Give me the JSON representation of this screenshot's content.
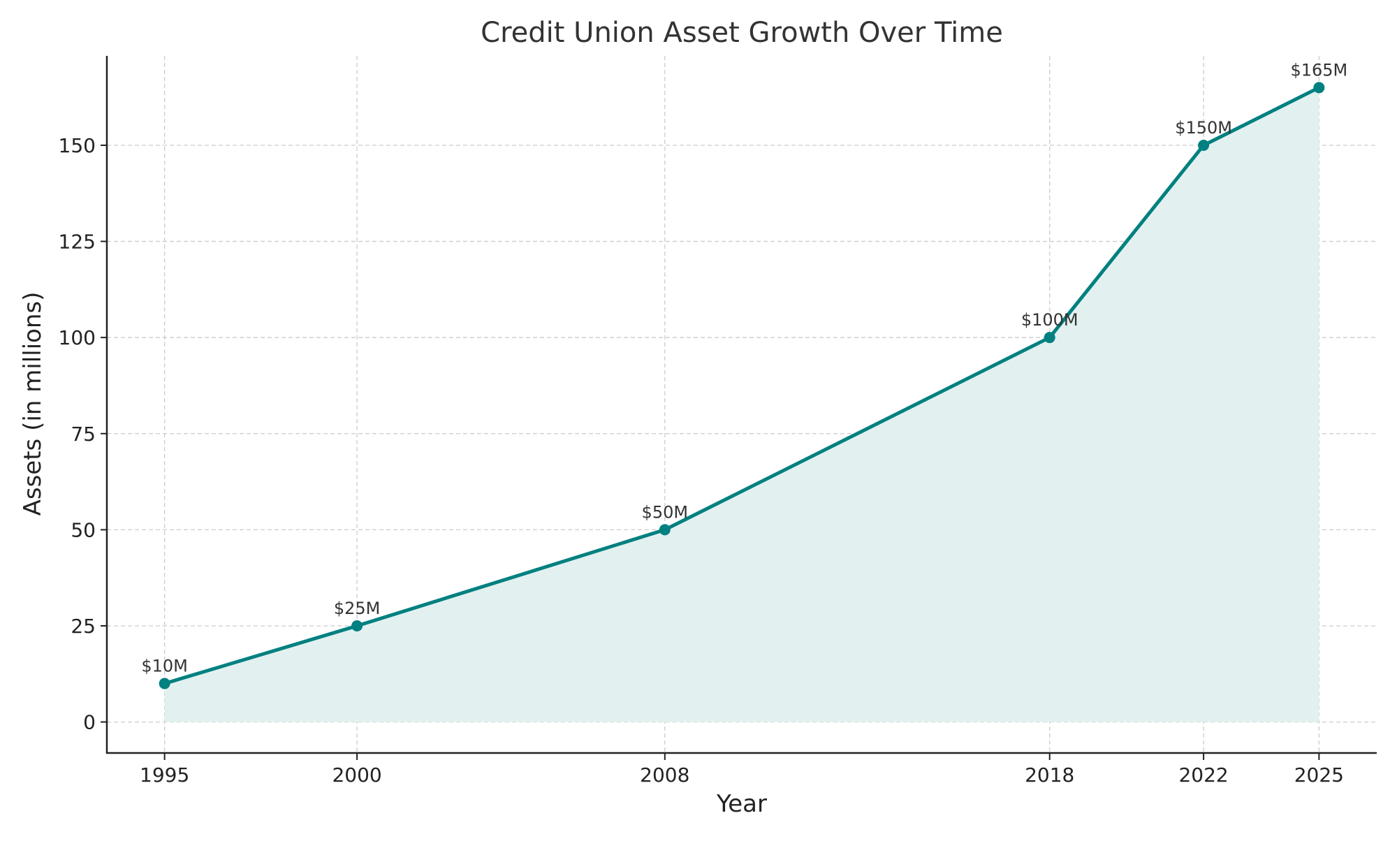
{
  "chart_data": {
    "type": "area",
    "title": "Credit Union Asset Growth Over Time",
    "xlabel": "Year",
    "ylabel": "Assets (in millions)",
    "x": [
      1995,
      2000,
      2008,
      2018,
      2022,
      2025
    ],
    "values": [
      10,
      25,
      50,
      100,
      150,
      165
    ],
    "data_labels": [
      "$10M",
      "$25M",
      "$50M",
      "$100M",
      "$150M",
      "$165M"
    ],
    "x_ticks": [
      "1995",
      "2000",
      "2008",
      "2018",
      "2022",
      "2025"
    ],
    "y_ticks": [
      0,
      25,
      50,
      75,
      100,
      125,
      150
    ],
    "y_tick_labels": [
      "0",
      "25",
      "50",
      "75",
      "100",
      "125",
      "150"
    ],
    "xlim": [
      1993.5,
      2026.5
    ],
    "ylim": [
      -8.25,
      173.25
    ],
    "grid": true,
    "markers": true,
    "colors": {
      "line": "#008080",
      "fill": "#e2f1f0",
      "grid": "#cccccc",
      "axis": "#222222",
      "text": "#333333"
    }
  }
}
